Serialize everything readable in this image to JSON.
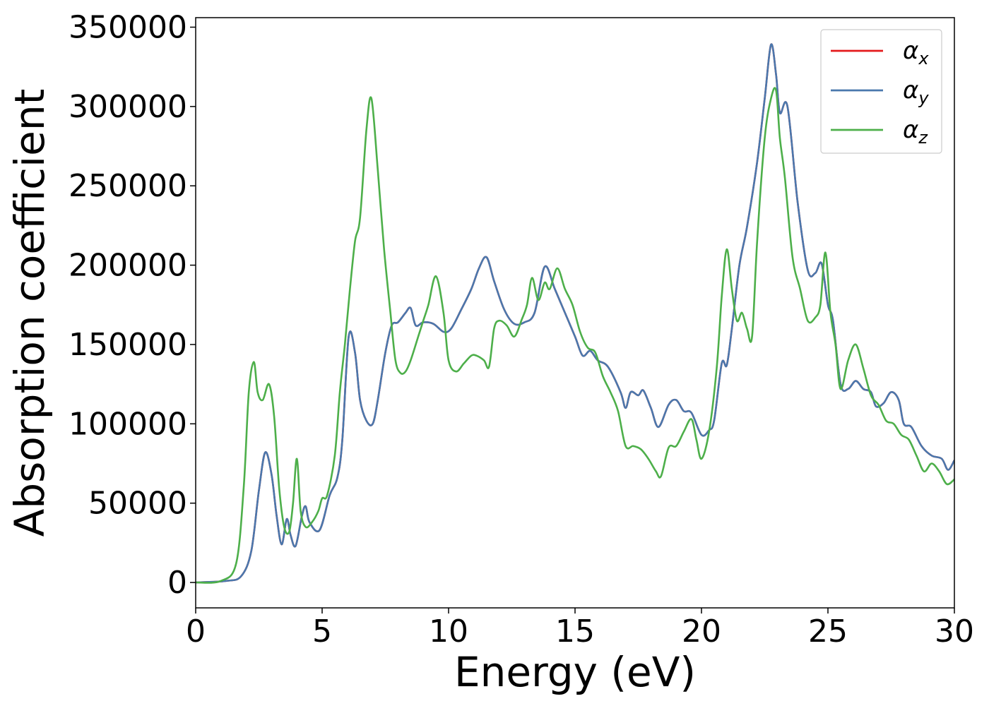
{
  "chart_data": {
    "type": "line",
    "xlabel": "Energy (eV)",
    "ylabel": "Absorption coefficient",
    "xlim": [
      0,
      30
    ],
    "ylim": [
      -16000,
      356000
    ],
    "xticks": [
      0,
      5,
      10,
      15,
      20,
      25,
      30
    ],
    "yticks": [
      0,
      50000,
      100000,
      150000,
      200000,
      250000,
      300000,
      350000
    ],
    "grid": false,
    "legend_position": "top-right",
    "series": [
      {
        "name": "α",
        "subscript": "x",
        "color": "#e41a1c",
        "x": [
          0,
          1.2,
          1.8,
          2.2,
          2.5,
          2.75,
          3.0,
          3.2,
          3.4,
          3.6,
          3.75,
          3.95,
          4.2,
          4.35,
          4.5,
          4.9,
          5.3,
          5.6,
          5.8,
          6.05,
          6.3,
          6.5,
          6.75,
          7.0,
          7.2,
          7.5,
          7.75,
          8.0,
          8.3,
          8.5,
          8.7,
          9.0,
          9.4,
          9.8,
          10.1,
          10.5,
          10.9,
          11.2,
          11.5,
          11.8,
          12.2,
          12.6,
          13.0,
          13.4,
          13.8,
          14.2,
          14.6,
          15.0,
          15.3,
          15.6,
          15.9,
          16.3,
          16.8,
          17.0,
          17.2,
          17.5,
          17.7,
          18.0,
          18.3,
          18.7,
          19.0,
          19.3,
          19.6,
          20.0,
          20.3,
          20.5,
          20.8,
          21.0,
          21.2,
          21.5,
          21.8,
          22.2,
          22.5,
          22.75,
          22.95,
          23.1,
          23.4,
          23.8,
          24.2,
          24.5,
          24.75,
          25.0,
          25.2,
          25.5,
          25.8,
          26.1,
          26.4,
          26.7,
          26.9,
          27.2,
          27.5,
          27.8,
          28.0,
          28.3,
          28.7,
          29.1,
          29.5,
          29.75,
          30
        ],
        "y": [
          0,
          1000,
          4000,
          20000,
          58000,
          82000,
          68000,
          42000,
          24000,
          40000,
          30000,
          23000,
          42000,
          48000,
          38000,
          33000,
          55000,
          66000,
          90000,
          155000,
          145000,
          115000,
          102000,
          100000,
          115000,
          145000,
          162000,
          164000,
          170000,
          173000,
          162000,
          164000,
          163000,
          158000,
          160000,
          172000,
          185000,
          198000,
          205000,
          190000,
          172000,
          163000,
          164000,
          170000,
          199000,
          185000,
          170000,
          155000,
          143000,
          146000,
          140000,
          136000,
          120000,
          110000,
          120000,
          118000,
          121000,
          110000,
          98000,
          112000,
          115000,
          108000,
          107000,
          93000,
          96000,
          102000,
          138000,
          137000,
          160000,
          200000,
          224000,
          265000,
          305000,
          339000,
          320000,
          296000,
          300000,
          240000,
          197000,
          195000,
          201000,
          175000,
          165000,
          125000,
          122000,
          127000,
          122000,
          120000,
          111000,
          113000,
          120000,
          115000,
          100000,
          98000,
          86000,
          80000,
          78000,
          71000,
          77000
        ]
      },
      {
        "name": "α",
        "subscript": "y",
        "color": "#4a78ad",
        "x": [
          0,
          1.2,
          1.8,
          2.2,
          2.5,
          2.75,
          3.0,
          3.2,
          3.4,
          3.6,
          3.75,
          3.95,
          4.2,
          4.35,
          4.5,
          4.9,
          5.3,
          5.6,
          5.8,
          6.05,
          6.3,
          6.5,
          6.75,
          7.0,
          7.2,
          7.5,
          7.75,
          8.0,
          8.3,
          8.5,
          8.7,
          9.0,
          9.4,
          9.8,
          10.1,
          10.5,
          10.9,
          11.2,
          11.5,
          11.8,
          12.2,
          12.6,
          13.0,
          13.4,
          13.8,
          14.2,
          14.6,
          15.0,
          15.3,
          15.6,
          15.9,
          16.3,
          16.8,
          17.0,
          17.2,
          17.5,
          17.7,
          18.0,
          18.3,
          18.7,
          19.0,
          19.3,
          19.6,
          20.0,
          20.3,
          20.5,
          20.8,
          21.0,
          21.2,
          21.5,
          21.8,
          22.2,
          22.5,
          22.75,
          22.95,
          23.1,
          23.4,
          23.8,
          24.2,
          24.5,
          24.75,
          25.0,
          25.2,
          25.5,
          25.8,
          26.1,
          26.4,
          26.7,
          26.9,
          27.2,
          27.5,
          27.8,
          28.0,
          28.3,
          28.7,
          29.1,
          29.5,
          29.75,
          30
        ],
        "y": [
          0,
          1000,
          4000,
          20000,
          58000,
          82000,
          68000,
          42000,
          24000,
          40000,
          30000,
          23000,
          42000,
          48000,
          38000,
          33000,
          55000,
          66000,
          90000,
          155000,
          145000,
          115000,
          102000,
          100000,
          115000,
          145000,
          162000,
          164000,
          170000,
          173000,
          162000,
          164000,
          163000,
          158000,
          160000,
          172000,
          185000,
          198000,
          205000,
          190000,
          172000,
          163000,
          164000,
          170000,
          199000,
          185000,
          170000,
          155000,
          143000,
          146000,
          140000,
          136000,
          120000,
          110000,
          120000,
          118000,
          121000,
          110000,
          98000,
          112000,
          115000,
          108000,
          107000,
          93000,
          96000,
          102000,
          138000,
          137000,
          160000,
          200000,
          224000,
          265000,
          305000,
          339000,
          320000,
          296000,
          300000,
          240000,
          197000,
          195000,
          201000,
          175000,
          165000,
          125000,
          122000,
          127000,
          122000,
          120000,
          111000,
          113000,
          120000,
          115000,
          100000,
          98000,
          86000,
          80000,
          78000,
          71000,
          77000
        ]
      },
      {
        "name": "α",
        "subscript": "z",
        "color": "#4daf4a",
        "x": [
          0,
          1.0,
          1.6,
          1.9,
          2.1,
          2.3,
          2.45,
          2.65,
          2.9,
          3.1,
          3.3,
          3.5,
          3.7,
          3.85,
          4.0,
          4.15,
          4.35,
          4.6,
          4.85,
          5.0,
          5.2,
          5.5,
          5.7,
          5.9,
          6.1,
          6.3,
          6.5,
          6.75,
          6.95,
          7.2,
          7.45,
          7.7,
          7.9,
          8.1,
          8.3,
          8.5,
          8.8,
          9.0,
          9.2,
          9.5,
          9.8,
          10.0,
          10.3,
          10.6,
          10.9,
          11.1,
          11.4,
          11.6,
          11.8,
          12.0,
          12.3,
          12.6,
          12.9,
          13.1,
          13.3,
          13.55,
          13.8,
          14.0,
          14.3,
          14.6,
          14.9,
          15.2,
          15.5,
          15.8,
          16.1,
          16.4,
          16.7,
          17.0,
          17.3,
          17.6,
          17.9,
          18.2,
          18.4,
          18.7,
          19.0,
          19.3,
          19.6,
          19.8,
          20.0,
          20.3,
          20.6,
          20.8,
          21.0,
          21.2,
          21.4,
          21.6,
          21.8,
          22.0,
          22.2,
          22.5,
          22.75,
          22.95,
          23.1,
          23.3,
          23.6,
          23.9,
          24.2,
          24.5,
          24.7,
          24.9,
          25.1,
          25.3,
          25.5,
          25.8,
          26.1,
          26.4,
          26.7,
          27.0,
          27.3,
          27.6,
          27.9,
          28.2,
          28.5,
          28.8,
          29.1,
          29.4,
          29.7,
          30
        ],
        "y": [
          0,
          1000,
          12000,
          60000,
          120000,
          139000,
          120000,
          115000,
          125000,
          105000,
          60000,
          35000,
          32000,
          50000,
          78000,
          45000,
          35000,
          38000,
          45000,
          53000,
          55000,
          80000,
          120000,
          150000,
          185000,
          215000,
          230000,
          285000,
          305000,
          260000,
          210000,
          170000,
          140000,
          132000,
          133000,
          140000,
          155000,
          165000,
          175000,
          193000,
          170000,
          140000,
          133000,
          138000,
          143000,
          143000,
          140000,
          136000,
          160000,
          165000,
          162000,
          155000,
          166000,
          175000,
          192000,
          178000,
          189000,
          185000,
          198000,
          185000,
          175000,
          158000,
          148000,
          145000,
          130000,
          120000,
          108000,
          86000,
          86000,
          84000,
          78000,
          70000,
          67000,
          85000,
          86000,
          95000,
          103000,
          90000,
          78000,
          95000,
          135000,
          180000,
          210000,
          185000,
          165000,
          170000,
          160000,
          155000,
          215000,
          280000,
          305000,
          310000,
          280000,
          255000,
          205000,
          185000,
          165000,
          167000,
          175000,
          208000,
          170000,
          150000,
          122000,
          140000,
          150000,
          135000,
          118000,
          112000,
          102000,
          100000,
          93000,
          90000,
          80000,
          70000,
          75000,
          70000,
          62000,
          65000
        ]
      }
    ]
  }
}
